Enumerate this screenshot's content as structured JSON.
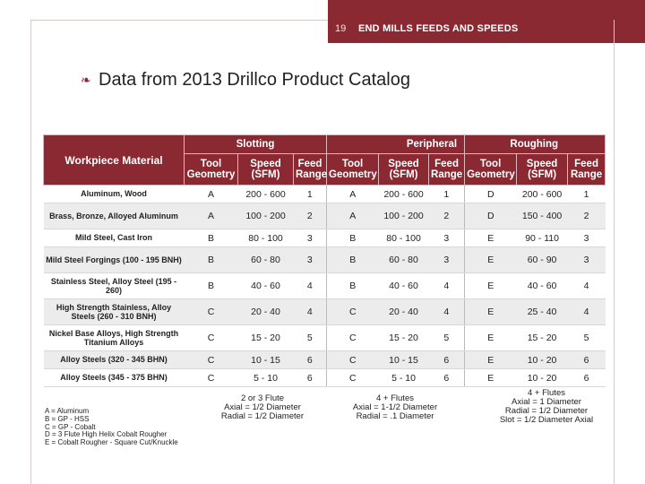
{
  "header": {
    "page_number": "19",
    "title": "END MILLS FEEDS AND SPEEDS"
  },
  "slide": {
    "subtitle": "Data from 2013 Drillco Product Catalog"
  },
  "table": {
    "groups": {
      "material": "Workpiece Material",
      "slotting": "Slotting",
      "peripheral": "Peripheral",
      "roughing": "Roughing"
    },
    "columns": [
      "Tool Geometry",
      "Speed (SFM)",
      "Feed Range",
      "Tool Geometry",
      "Speed (SFM)",
      "Feed Range",
      "Tool Geometry",
      "Speed (SFM)",
      "Feed Range"
    ],
    "rows": [
      {
        "material": "Aluminum, Wood",
        "cells": [
          "A",
          "200 - 600",
          "1",
          "A",
          "200 - 600",
          "1",
          "D",
          "200 - 600",
          "1"
        ]
      },
      {
        "material": "Brass, Bronze, Alloyed Aluminum",
        "cells": [
          "A",
          "100 - 200",
          "2",
          "A",
          "100 - 200",
          "2",
          "D",
          "150 - 400",
          "2"
        ]
      },
      {
        "material": "Mild Steel, Cast Iron",
        "cells": [
          "B",
          "80 - 100",
          "3",
          "B",
          "80 - 100",
          "3",
          "E",
          "90 - 110",
          "3"
        ]
      },
      {
        "material": "Mild Steel Forgings (100 - 195 BNH)",
        "cells": [
          "B",
          "60 - 80",
          "3",
          "B",
          "60 - 80",
          "3",
          "E",
          "60 - 90",
          "3"
        ]
      },
      {
        "material": "Stainless Steel, Alloy Steel (195 - 260)",
        "cells": [
          "B",
          "40 - 60",
          "4",
          "B",
          "40 - 60",
          "4",
          "E",
          "40 - 60",
          "4"
        ]
      },
      {
        "material": "High Strength Stainless, Alloy Steels (260 - 310 BNH)",
        "cells": [
          "C",
          "20 - 40",
          "4",
          "C",
          "20 - 40",
          "4",
          "E",
          "25 - 40",
          "4"
        ]
      },
      {
        "material": "Nickel Base Alloys, High Strength Titanium Alloys",
        "cells": [
          "C",
          "15 - 20",
          "5",
          "C",
          "15 - 20",
          "5",
          "E",
          "15 - 20",
          "5"
        ]
      },
      {
        "material": "Alloy Steels (320 - 345 BHN)",
        "cells": [
          "C",
          "10 - 15",
          "6",
          "C",
          "10 - 15",
          "6",
          "E",
          "10 - 20",
          "6"
        ]
      },
      {
        "material": "Alloy Steels (345 - 375 BHN)",
        "cells": [
          "C",
          "5 - 10",
          "6",
          "C",
          "5 - 10",
          "6",
          "E",
          "10 - 20",
          "6"
        ]
      }
    ]
  },
  "footnotes": {
    "slotting": [
      "2 or 3 Flute",
      "Axial = 1/2 Diameter",
      "Radial = 1/2 Diameter"
    ],
    "peripheral": [
      "4 + Flutes",
      "Axial = 1-1/2 Diameter",
      "Radial = .1 Diameter"
    ],
    "roughing": [
      "4 + Flutes",
      "Axial = 1 Diameter",
      "Radial = 1/2 Diameter",
      "Slot = 1/2 Diameter Axial"
    ]
  },
  "legend": [
    "A = Aluminum",
    "B = GP - HSS",
    "C = GP - Cobalt",
    "D = 3 Flute High Helix Cobalt Rougher",
    "E = Cobalt Rougher - Square Cut/Knuckle"
  ]
}
